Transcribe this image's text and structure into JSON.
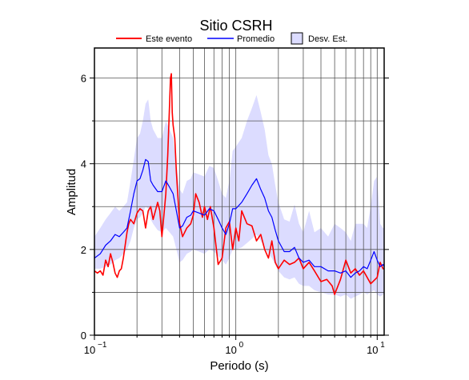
{
  "chart_data": {
    "type": "line",
    "title": "Sitio CSRH",
    "xlabel": "Periodo (s)",
    "ylabel": "Amplitud",
    "xscale": "log",
    "xlim": [
      0.1,
      11.2
    ],
    "ylim": [
      0,
      6.7
    ],
    "grid": true,
    "legend_placement": "top",
    "x_tick_labels": [
      {
        "base": "10",
        "exp": "−1",
        "value": 0.1
      },
      {
        "base": "10",
        "exp": "0",
        "value": 1
      },
      {
        "base": "10",
        "exp": "1",
        "value": 10
      }
    ],
    "x_tick_text": [
      "10",
      "−1",
      "10",
      "0",
      "10",
      "1"
    ],
    "y_ticks": [
      0,
      2,
      4,
      6
    ],
    "y_tick_labels": [
      "0",
      "2",
      "4",
      "6"
    ],
    "legend": [
      "Este evento",
      "Promedio",
      "Desv. Est."
    ],
    "colors": {
      "este_evento": "#ff0000",
      "promedio": "#0000ff",
      "band": "#dcdcff",
      "grid": "#555555"
    },
    "series": [
      {
        "name": "Este evento",
        "color": "#ff0000",
        "x": [
          0.1,
          0.105,
          0.11,
          0.115,
          0.12,
          0.125,
          0.13,
          0.135,
          0.14,
          0.145,
          0.15,
          0.155,
          0.16,
          0.165,
          0.17,
          0.175,
          0.18,
          0.19,
          0.2,
          0.21,
          0.22,
          0.23,
          0.24,
          0.25,
          0.26,
          0.27,
          0.28,
          0.29,
          0.3,
          0.31,
          0.32,
          0.33,
          0.34,
          0.345,
          0.35,
          0.355,
          0.36,
          0.37,
          0.38,
          0.39,
          0.4,
          0.42,
          0.45,
          0.48,
          0.5,
          0.52,
          0.55,
          0.58,
          0.6,
          0.63,
          0.66,
          0.7,
          0.75,
          0.8,
          0.85,
          0.9,
          0.95,
          1.0,
          1.05,
          1.1,
          1.2,
          1.3,
          1.4,
          1.5,
          1.6,
          1.7,
          1.8,
          1.9,
          2.0,
          2.2,
          2.4,
          2.6,
          2.8,
          3.0,
          3.3,
          3.6,
          4.0,
          4.4,
          4.8,
          5.0,
          5.5,
          6.0,
          6.5,
          7.0,
          7.5,
          8.0,
          9.0,
          10.0,
          10.5,
          11.0,
          11.2
        ],
        "values": [
          1.5,
          1.45,
          1.5,
          1.4,
          1.75,
          1.6,
          1.9,
          1.7,
          1.45,
          1.35,
          1.5,
          1.55,
          1.8,
          2.1,
          2.4,
          2.6,
          2.7,
          2.6,
          2.85,
          2.95,
          2.9,
          2.5,
          2.9,
          3.0,
          2.7,
          2.9,
          3.1,
          2.9,
          2.3,
          2.8,
          3.3,
          4.2,
          5.4,
          6.0,
          6.1,
          5.2,
          4.9,
          4.6,
          3.8,
          3.2,
          2.6,
          2.3,
          2.5,
          2.6,
          2.8,
          3.3,
          3.1,
          2.75,
          3.0,
          2.7,
          3.0,
          2.5,
          1.65,
          1.8,
          2.5,
          2.65,
          2.0,
          2.5,
          2.2,
          2.9,
          2.6,
          2.55,
          2.2,
          2.35,
          2.0,
          1.8,
          2.2,
          1.7,
          1.55,
          1.75,
          1.65,
          1.7,
          1.8,
          1.55,
          1.7,
          1.5,
          1.25,
          1.3,
          1.15,
          0.95,
          1.3,
          1.75,
          1.45,
          1.55,
          1.4,
          1.5,
          1.2,
          1.35,
          1.7,
          1.55,
          1.55
        ]
      },
      {
        "name": "Promedio",
        "color": "#0000ff",
        "x": [
          0.1,
          0.11,
          0.12,
          0.13,
          0.14,
          0.15,
          0.16,
          0.17,
          0.18,
          0.19,
          0.2,
          0.21,
          0.22,
          0.23,
          0.24,
          0.25,
          0.26,
          0.28,
          0.3,
          0.32,
          0.34,
          0.36,
          0.38,
          0.4,
          0.42,
          0.45,
          0.48,
          0.5,
          0.55,
          0.6,
          0.65,
          0.7,
          0.75,
          0.8,
          0.85,
          0.9,
          0.95,
          1.0,
          1.1,
          1.2,
          1.3,
          1.4,
          1.5,
          1.6,
          1.7,
          1.8,
          1.9,
          2.0,
          2.2,
          2.4,
          2.6,
          2.8,
          3.0,
          3.3,
          3.6,
          4.0,
          4.5,
          5.0,
          5.5,
          6.0,
          6.5,
          7.0,
          7.5,
          8.0,
          8.5,
          9.0,
          9.5,
          10.0,
          10.5,
          11.0,
          11.2
        ],
        "values": [
          1.8,
          1.9,
          2.1,
          2.2,
          2.35,
          2.3,
          2.4,
          2.5,
          2.9,
          3.3,
          3.6,
          3.65,
          3.85,
          4.1,
          4.05,
          3.6,
          3.5,
          3.35,
          3.35,
          3.6,
          3.45,
          3.3,
          2.9,
          2.5,
          2.55,
          2.75,
          2.8,
          2.9,
          2.85,
          2.8,
          2.95,
          2.9,
          2.7,
          2.5,
          2.35,
          2.6,
          2.95,
          2.95,
          3.1,
          3.3,
          3.5,
          3.65,
          3.4,
          3.2,
          2.9,
          2.75,
          2.45,
          2.2,
          1.95,
          1.95,
          2.05,
          1.8,
          1.7,
          1.75,
          1.6,
          1.6,
          1.5,
          1.5,
          1.45,
          1.5,
          1.35,
          1.45,
          1.5,
          1.6,
          1.55,
          1.75,
          1.95,
          1.75,
          1.6,
          1.65,
          1.6
        ]
      },
      {
        "name": "Desv. Est.",
        "color": "#dcdcff",
        "x": [
          0.1,
          0.11,
          0.12,
          0.13,
          0.14,
          0.15,
          0.16,
          0.17,
          0.18,
          0.19,
          0.2,
          0.21,
          0.22,
          0.23,
          0.24,
          0.25,
          0.26,
          0.28,
          0.3,
          0.32,
          0.34,
          0.36,
          0.38,
          0.4,
          0.42,
          0.45,
          0.48,
          0.5,
          0.55,
          0.6,
          0.65,
          0.7,
          0.75,
          0.8,
          0.85,
          0.9,
          0.95,
          1.0,
          1.1,
          1.2,
          1.3,
          1.4,
          1.5,
          1.6,
          1.7,
          1.8,
          1.9,
          2.0,
          2.2,
          2.4,
          2.6,
          2.8,
          3.0,
          3.3,
          3.6,
          4.0,
          4.5,
          5.0,
          5.5,
          6.0,
          6.5,
          7.0,
          7.5,
          8.0,
          8.5,
          9.0,
          9.5,
          10.0,
          10.5,
          11.0,
          11.2
        ],
        "lower": [
          1.55,
          1.55,
          1.6,
          1.65,
          1.75,
          1.8,
          1.9,
          2.0,
          2.2,
          2.5,
          2.7,
          2.75,
          2.85,
          3.0,
          2.95,
          2.7,
          2.6,
          2.45,
          2.4,
          2.5,
          2.4,
          2.3,
          2.0,
          1.7,
          1.75,
          1.9,
          1.95,
          2.0,
          1.95,
          1.9,
          2.0,
          1.95,
          1.85,
          1.75,
          1.65,
          1.8,
          2.0,
          2.0,
          2.05,
          2.15,
          2.25,
          2.35,
          2.2,
          2.05,
          1.9,
          1.8,
          1.65,
          1.5,
          1.35,
          1.3,
          1.35,
          1.2,
          1.15,
          1.15,
          1.05,
          1.0,
          0.95,
          0.95,
          0.9,
          0.95,
          0.85,
          0.9,
          0.95,
          1.0,
          0.95,
          1.0,
          1.05,
          0.95,
          0.9,
          0.95,
          0.95
        ],
        "upper": [
          2.3,
          2.5,
          2.7,
          2.85,
          3.0,
          2.9,
          3.0,
          3.1,
          3.6,
          4.1,
          4.6,
          4.7,
          5.0,
          5.4,
          5.5,
          5.0,
          4.8,
          4.6,
          4.6,
          5.0,
          4.8,
          4.6,
          4.0,
          3.4,
          3.3,
          3.6,
          3.65,
          3.8,
          3.75,
          3.7,
          3.95,
          3.9,
          3.6,
          3.3,
          3.2,
          3.6,
          4.3,
          4.4,
          4.6,
          5.0,
          5.3,
          5.6,
          5.2,
          4.8,
          4.2,
          4.0,
          3.5,
          3.1,
          2.7,
          2.65,
          3.05,
          2.6,
          2.4,
          2.9,
          2.4,
          2.5,
          2.3,
          2.6,
          2.5,
          2.4,
          2.2,
          2.6,
          2.6,
          2.6,
          2.5,
          3.0,
          3.6,
          3.7,
          2.6,
          2.5,
          2.5
        ]
      }
    ]
  }
}
